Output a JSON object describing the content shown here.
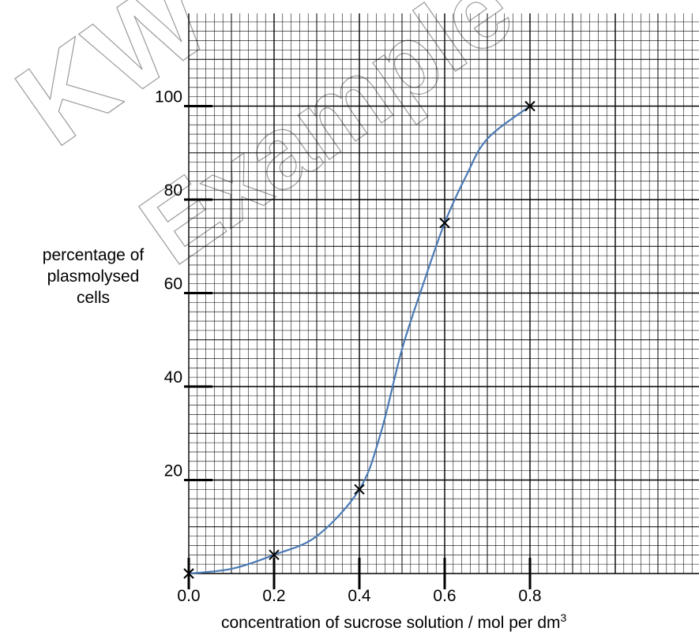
{
  "chart_data": {
    "type": "line",
    "title": "",
    "xlabel": "concentration of sucrose solution / mol per dm",
    "xlabel_superscript": "3",
    "ylabel_lines": [
      "percentage of",
      "plasmolysed",
      "cells"
    ],
    "xlim": [
      0,
      1.2
    ],
    "ylim": [
      0,
      120
    ],
    "x_ticks": [
      0.0,
      0.2,
      0.4,
      0.6,
      0.8
    ],
    "x_tick_labels": [
      "0.0",
      "0.2",
      "0.4",
      "0.6",
      "0.8"
    ],
    "y_ticks": [
      20,
      40,
      60,
      80,
      100
    ],
    "y_tick_labels": [
      "20",
      "40",
      "60",
      "80",
      "100"
    ],
    "grid": true,
    "series": [
      {
        "marker": "x",
        "color": "#4a7ab5",
        "x": [
          0.0,
          0.2,
          0.4,
          0.6,
          0.8
        ],
        "y": [
          0,
          4,
          18,
          75,
          100
        ]
      }
    ],
    "curve_smooth_points": [
      [
        0.0,
        0
      ],
      [
        0.1,
        1
      ],
      [
        0.2,
        4
      ],
      [
        0.3,
        8
      ],
      [
        0.4,
        18
      ],
      [
        0.45,
        30
      ],
      [
        0.5,
        48
      ],
      [
        0.55,
        62
      ],
      [
        0.6,
        75
      ],
      [
        0.65,
        85
      ],
      [
        0.7,
        93
      ],
      [
        0.8,
        100
      ]
    ],
    "watermark_text": "KW Example"
  }
}
